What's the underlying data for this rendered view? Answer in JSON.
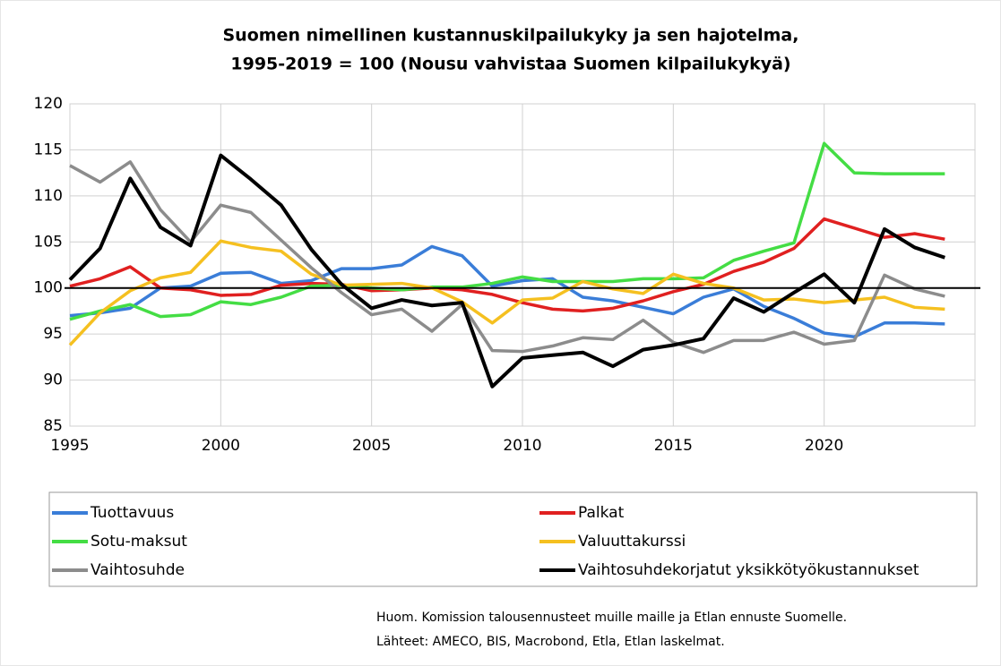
{
  "chart_data": {
    "type": "line",
    "title": "Suomen nimellinen kustannuskilpailukyky  ja sen hajotelma,",
    "subtitle": "1995-2019 = 100 (Nousu vahvistaa Suomen kilpailukykyä)",
    "x": [
      1995,
      1996,
      1997,
      1998,
      1999,
      2000,
      2001,
      2002,
      2003,
      2004,
      2005,
      2006,
      2007,
      2008,
      2009,
      2010,
      2011,
      2012,
      2013,
      2014,
      2015,
      2016,
      2017,
      2018,
      2019,
      2020,
      2021,
      2022,
      2023,
      2024
    ],
    "series": [
      {
        "name": "Tuottavuus",
        "color": "#3a7dd8",
        "values": [
          97.0,
          97.3,
          97.8,
          100.0,
          100.2,
          101.6,
          101.7,
          100.5,
          100.8,
          102.1,
          102.1,
          102.5,
          104.5,
          103.5,
          100.2,
          100.8,
          101.0,
          99.0,
          98.6,
          97.9,
          97.2,
          99.0,
          99.9,
          98.0,
          96.7,
          95.1,
          94.7,
          96.2,
          96.2,
          96.1
        ]
      },
      {
        "name": "Palkat",
        "color": "#e02020",
        "values": [
          100.2,
          101.0,
          102.3,
          100.0,
          99.8,
          99.2,
          99.3,
          100.3,
          100.5,
          100.4,
          99.7,
          99.8,
          100.0,
          99.8,
          99.3,
          98.4,
          97.7,
          97.5,
          97.8,
          98.6,
          99.6,
          100.4,
          101.8,
          102.8,
          104.3,
          107.5,
          106.5,
          105.5,
          105.9,
          105.3
        ]
      },
      {
        "name": "Sotu-maksut",
        "color": "#44dd44",
        "values": [
          96.6,
          97.5,
          98.2,
          96.9,
          97.1,
          98.5,
          98.2,
          99.0,
          100.2,
          100.3,
          100.0,
          99.8,
          100.1,
          100.1,
          100.5,
          101.2,
          100.7,
          100.7,
          100.7,
          101.0,
          101.0,
          101.1,
          103.0,
          104.0,
          104.9,
          115.7,
          112.5,
          112.4,
          112.4,
          112.4
        ]
      },
      {
        "name": "Valuuttakurssi",
        "color": "#f5c020",
        "values": [
          93.8,
          97.3,
          99.7,
          101.1,
          101.7,
          105.1,
          104.4,
          104.0,
          101.5,
          100.3,
          100.4,
          100.5,
          100.0,
          98.5,
          96.2,
          98.7,
          98.9,
          100.7,
          99.9,
          99.4,
          101.5,
          100.5,
          100.0,
          98.7,
          98.8,
          98.4,
          98.7,
          99.0,
          97.9,
          97.7
        ]
      },
      {
        "name": "Vaihtosuhde",
        "color": "#8c8c8c",
        "values": [
          113.3,
          111.5,
          113.7,
          108.5,
          105.0,
          109.0,
          108.2,
          105.2,
          102.2,
          99.5,
          97.1,
          97.7,
          95.3,
          98.2,
          93.2,
          93.1,
          93.7,
          94.6,
          94.4,
          96.5,
          94.1,
          93.0,
          94.3,
          94.3,
          95.2,
          93.9,
          94.3,
          101.4,
          99.9,
          99.1
        ]
      },
      {
        "name": "Vaihtosuhdekorjatut yksikkötyökustannukset",
        "color": "#000000",
        "values": [
          100.9,
          104.3,
          111.9,
          106.6,
          104.6,
          114.4,
          111.8,
          109.0,
          104.2,
          100.4,
          97.8,
          98.7,
          98.1,
          98.4,
          89.3,
          92.4,
          92.7,
          93.0,
          91.5,
          93.3,
          93.8,
          94.5,
          98.9,
          97.4,
          99.5,
          101.5,
          98.4,
          106.4,
          104.4,
          103.3
        ]
      }
    ],
    "xlim": [
      1995,
      2025
    ],
    "xticks": [
      1995,
      2000,
      2005,
      2010,
      2015,
      2020
    ],
    "ylim": [
      85,
      120
    ],
    "yticks": [
      85,
      90,
      95,
      100,
      105,
      110,
      115,
      120
    ],
    "grid": true,
    "reference_line": 100,
    "notes": [
      "Huom. Komission talousennusteet  muille maille ja Etlan ennuste Suomelle.",
      "Lähteet: AMECO, BIS, Macrobond,  Etla, Etlan laskelmat."
    ]
  }
}
